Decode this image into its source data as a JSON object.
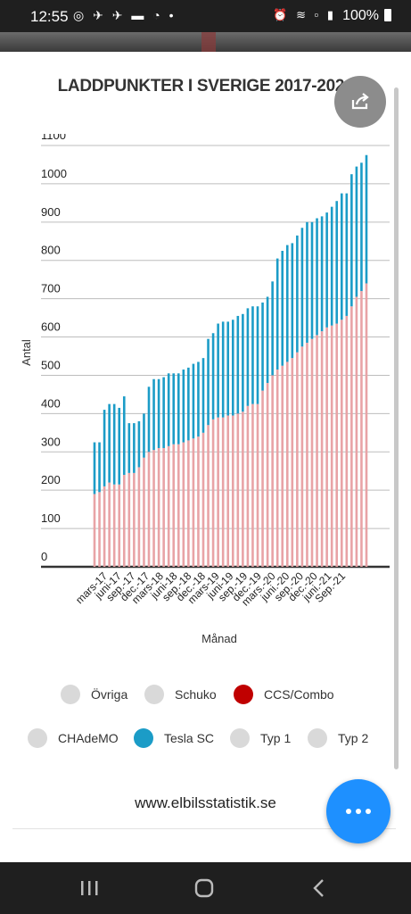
{
  "status_bar": {
    "time": "12:55",
    "left_icons": [
      "instagram-icon",
      "messenger-icon",
      "messenger-icon",
      "car-icon",
      "chat-icon",
      "dot-icon"
    ],
    "right_icons": [
      "alarm-icon",
      "wifi-icon",
      "volte-lte1-icon",
      "signal-icon"
    ],
    "battery": "100%"
  },
  "share_button": {
    "icon": "share-icon"
  },
  "fab": {
    "icon": "more-horizontal-icon",
    "color": "#1e90ff"
  },
  "footer": {
    "site": "www.elbilsstatistik.se"
  },
  "nav_bar": {
    "items": [
      "recent-apps-icon",
      "home-icon",
      "back-icon"
    ]
  },
  "legend": {
    "items": [
      {
        "label": "Övriga",
        "active": false,
        "color": "#d9d9d9"
      },
      {
        "label": "Schuko",
        "active": false,
        "color": "#d9d9d9"
      },
      {
        "label": "CCS/Combo",
        "active": true,
        "color": "#c00000"
      },
      {
        "label": "CHAdeMO",
        "active": false,
        "color": "#d9d9d9"
      },
      {
        "label": "Tesla SC",
        "active": true,
        "color": "#1b9cc7"
      },
      {
        "label": "Typ 1",
        "active": false,
        "color": "#d9d9d9"
      },
      {
        "label": "Typ 2",
        "active": false,
        "color": "#d9d9d9"
      }
    ]
  },
  "chart_data": {
    "type": "bar",
    "stacked": true,
    "title": "LADDPUNKTER I SVERIGE 2017-2021",
    "xlabel": "Månad",
    "ylabel": "Antal",
    "ylim": [
      0,
      1100
    ],
    "yticks": [
      0,
      100,
      200,
      300,
      400,
      500,
      600,
      700,
      800,
      900,
      1000,
      1100
    ],
    "grid": true,
    "colors": {
      "CCS/Combo": "#e8a3a6",
      "Tesla SC": "#1b9cc7"
    },
    "x_tick_labels": [
      "mars-17",
      "juni-17",
      "sep.-17",
      "dec.-17",
      "mars-18",
      "juni-18",
      "sep.-18",
      "dec.-18",
      "mars-19",
      "juni-19",
      "sep.-19",
      "dec.-19",
      "mars.-20",
      "juni.-20",
      "sep.-20",
      "dec.-20",
      "juni.-21",
      "Sep.-21"
    ],
    "series": [
      {
        "name": "CCS/Combo",
        "values": [
          190,
          195,
          210,
          220,
          215,
          215,
          240,
          245,
          245,
          260,
          285,
          300,
          305,
          310,
          310,
          315,
          320,
          320,
          325,
          330,
          335,
          340,
          350,
          370,
          385,
          390,
          390,
          395,
          395,
          400,
          405,
          420,
          425,
          425,
          460,
          480,
          500,
          515,
          525,
          535,
          545,
          560,
          575,
          585,
          595,
          605,
          615,
          625,
          630,
          635,
          645,
          655,
          680,
          705,
          720,
          740
        ]
      },
      {
        "name": "Tesla SC",
        "values": [
          135,
          130,
          200,
          205,
          210,
          200,
          205,
          130,
          130,
          120,
          115,
          170,
          185,
          180,
          185,
          190,
          185,
          185,
          190,
          190,
          195,
          195,
          195,
          225,
          225,
          245,
          250,
          245,
          250,
          255,
          255,
          255,
          255,
          255,
          230,
          225,
          245,
          290,
          300,
          305,
          300,
          305,
          310,
          315,
          305,
          305,
          300,
          300,
          310,
          320,
          330,
          320,
          345,
          340,
          335,
          335
        ]
      }
    ]
  }
}
